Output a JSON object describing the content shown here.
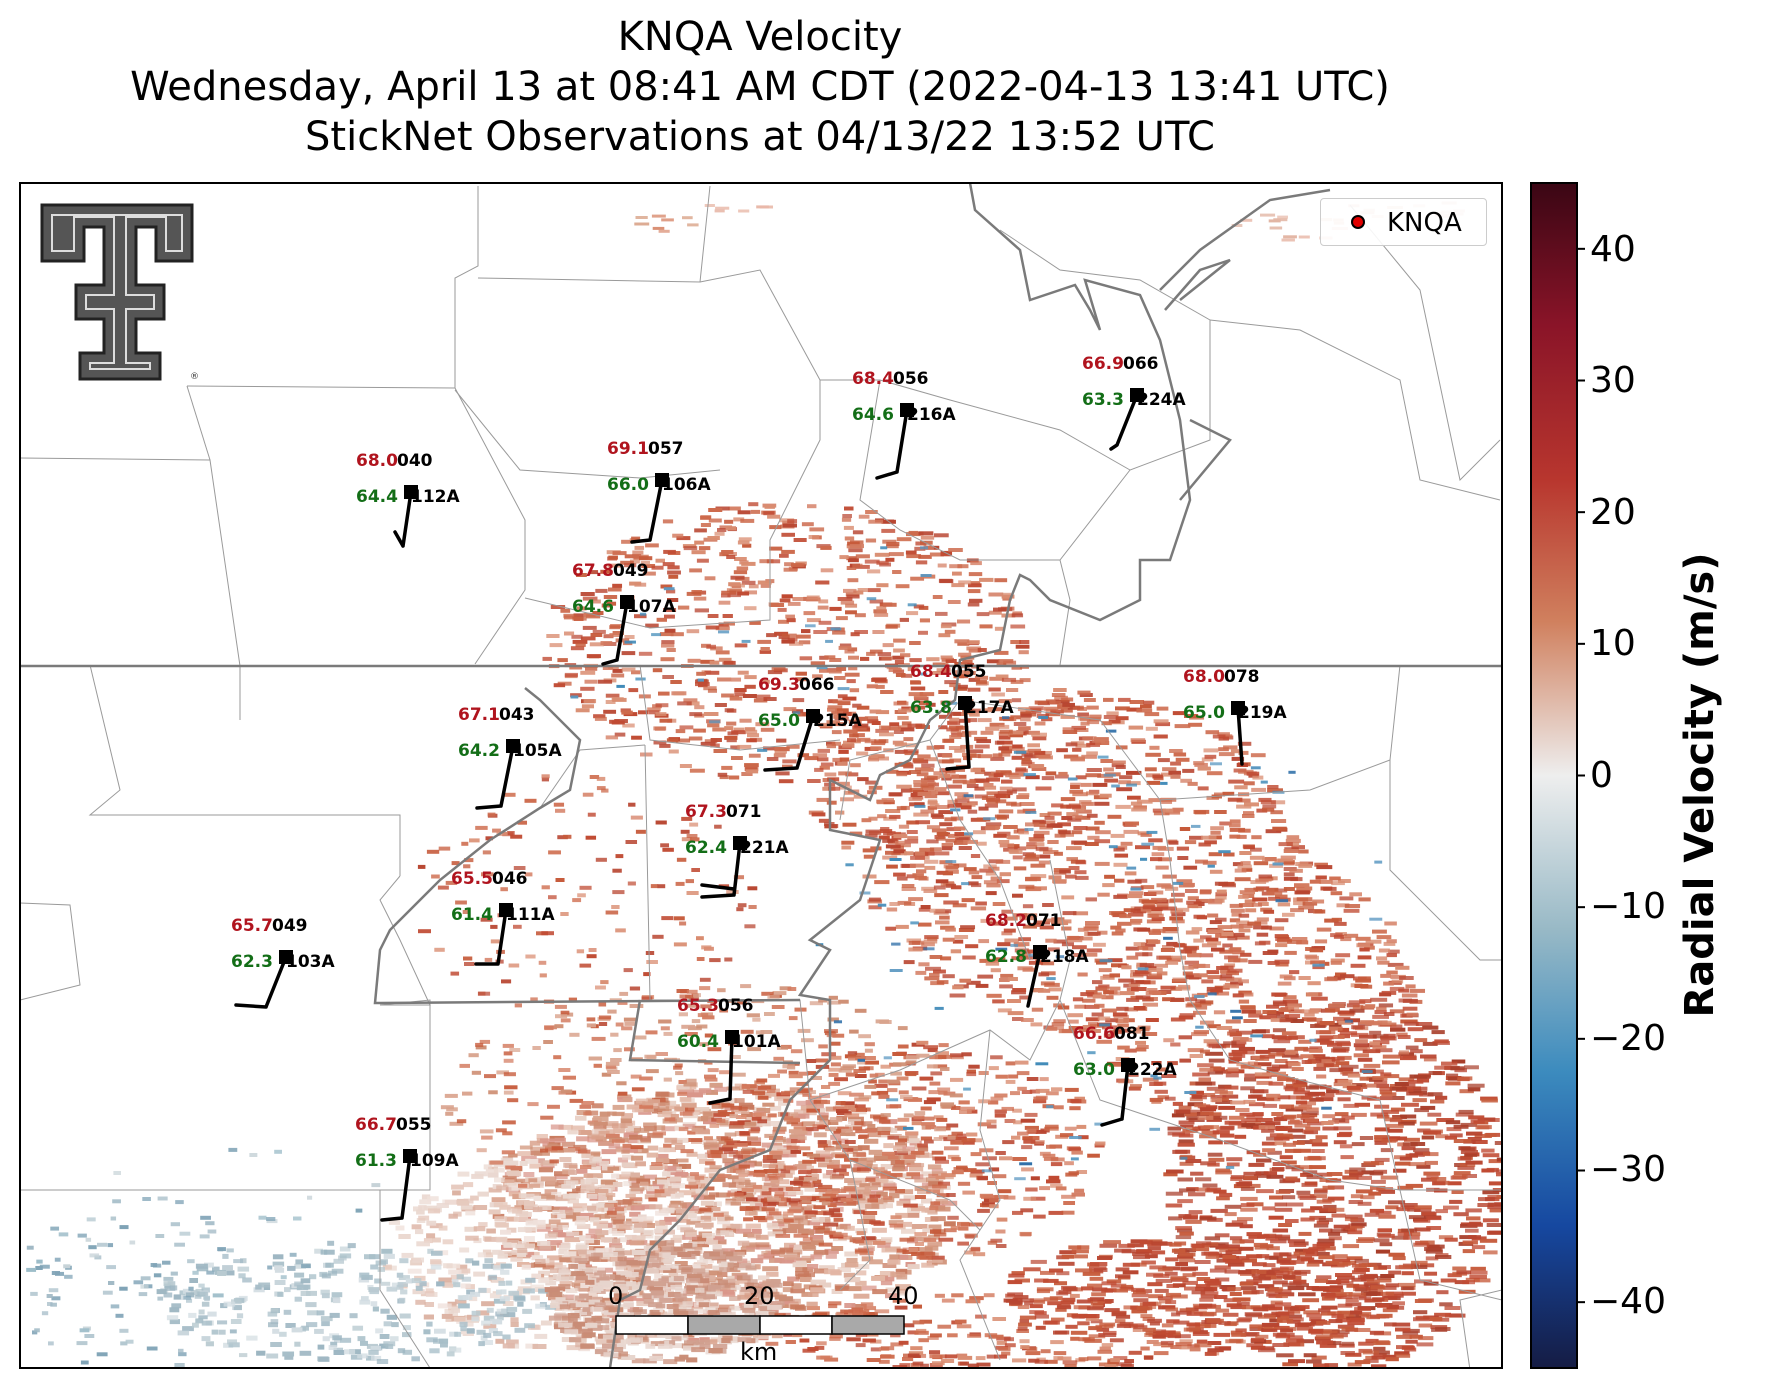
{
  "titles": {
    "line1": "KNQA Velocity",
    "line2": "Wednesday, April 13 at 08:41 AM CDT (2022-04-13 13:41 UTC)",
    "line3": "StickNet Observations at 04/13/22 13:52 UTC"
  },
  "legend": {
    "label": "KNQA",
    "marker_color": "#e00000"
  },
  "colorbar": {
    "label": "Radial Velocity (m/s)",
    "range": [
      -45,
      45
    ],
    "ticks": [
      "40",
      "30",
      "20",
      "10",
      "0",
      "−10",
      "−20",
      "−30",
      "−40"
    ],
    "colors": [
      "#4a0a1a",
      "#9a1a30",
      "#c2523a",
      "#dba88e",
      "#eeeeee",
      "#9cbcc8",
      "#3f8ab8",
      "#1a52a8",
      "#182048"
    ]
  },
  "scale_bar": {
    "labels": [
      "0",
      "20",
      "40"
    ],
    "unit": "km"
  },
  "logo": {
    "name": "texas-tech-double-t-logo",
    "text": "TT"
  },
  "stations": [
    {
      "id": "040",
      "probe": "112A",
      "temp": "68.0",
      "dew": "64.4"
    },
    {
      "id": "057",
      "probe": "106A",
      "temp": "69.1",
      "dew": "66.0"
    },
    {
      "id": "056",
      "probe": "216A",
      "temp": "68.4",
      "dew": "64.6"
    },
    {
      "id": "066",
      "probe": "224A",
      "temp": "66.9",
      "dew": "63.3"
    },
    {
      "id": "049",
      "probe": "107A",
      "temp": "67.8",
      "dew": "64.6"
    },
    {
      "id": "066",
      "probe": "215A",
      "temp": "69.3",
      "dew": "65.0"
    },
    {
      "id": "055",
      "probe": "217A",
      "temp": "68.4",
      "dew": "63.8"
    },
    {
      "id": "078",
      "probe": "219A",
      "temp": "68.0",
      "dew": "65.0"
    },
    {
      "id": "043",
      "probe": "105A",
      "temp": "67.1",
      "dew": "64.2"
    },
    {
      "id": "071",
      "probe": "221A",
      "temp": "67.3",
      "dew": "62.4"
    },
    {
      "id": "046",
      "probe": "111A",
      "temp": "65.5",
      "dew": "61.4"
    },
    {
      "id": "049",
      "probe": "103A",
      "temp": "65.7",
      "dew": "62.3"
    },
    {
      "id": "071",
      "probe": "218A",
      "temp": "68.2",
      "dew": "62.8"
    },
    {
      "id": "056",
      "probe": "101A",
      "temp": "65.3",
      "dew": "60.4"
    },
    {
      "id": "081",
      "probe": "222A",
      "temp": "66.6",
      "dew": "63.0"
    },
    {
      "id": "055",
      "probe": "109A",
      "temp": "66.7",
      "dew": "61.3"
    }
  ]
}
